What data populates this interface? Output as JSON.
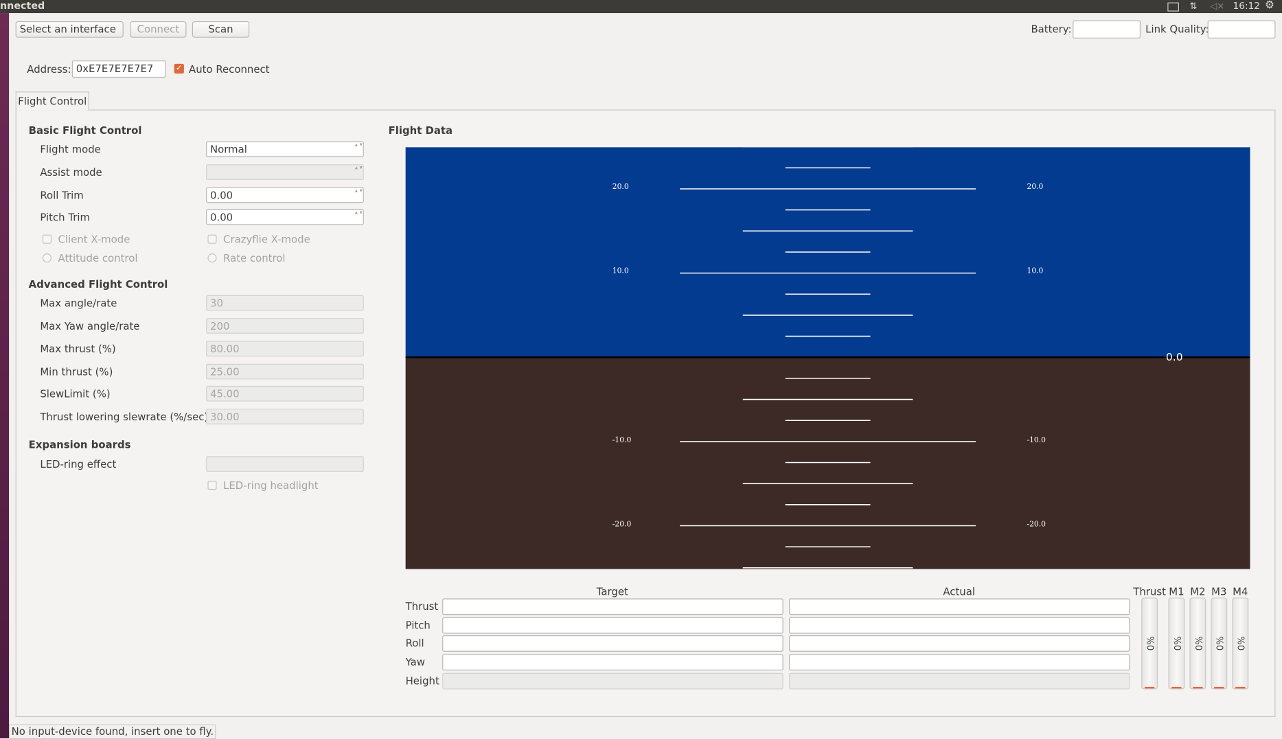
{
  "topbar": {
    "title": "nnected",
    "clock": "16:12"
  },
  "toolbar": {
    "interface": "Select an interface",
    "connect": "Connect",
    "scan": "Scan",
    "battery": "Battery:",
    "link_quality": "Link Quality:"
  },
  "address": {
    "label": "Address:",
    "value": "0xE7E7E7E7E7",
    "auto_reconnect": "Auto Reconnect"
  },
  "tab": "Flight Control",
  "basic": {
    "heading": "Basic Flight Control",
    "rows": [
      {
        "label": "Flight mode",
        "value": "Normal"
      },
      {
        "label": "Assist mode"
      },
      {
        "label": "Roll Trim",
        "value": "0.00"
      },
      {
        "label": "Pitch Trim",
        "value": "0.00"
      }
    ],
    "checks": [
      "Client X-mode",
      "Crazyflie X-mode"
    ],
    "radios": [
      "Attitude control",
      "Rate control"
    ]
  },
  "advanced": {
    "heading": "Advanced Flight Control",
    "rows": [
      {
        "label": "Max angle/rate",
        "value": "30"
      },
      {
        "label": "Max Yaw angle/rate",
        "value": "200"
      },
      {
        "label": "Max thrust (%)",
        "value": "80.00"
      },
      {
        "label": "Min thrust (%)",
        "value": "25.00"
      },
      {
        "label": "SlewLimit (%)",
        "value": "45.00"
      },
      {
        "label": "Thrust lowering slewrate (%/sec)",
        "value": "30.00"
      }
    ]
  },
  "expansion": {
    "heading": "Expansion boards",
    "effect": "LED-ring effect",
    "headlight": "LED-ring headlight"
  },
  "flight_data": {
    "heading": "Flight Data",
    "horizon_labels": [
      "20.0",
      "10.0",
      "-10.0",
      "-20.0"
    ],
    "center_label": "0.0",
    "columns": [
      "Target",
      "Actual"
    ],
    "rows": [
      "Thrust",
      "Pitch",
      "Roll",
      "Yaw",
      "Height"
    ],
    "motors": [
      "Thrust",
      "M1",
      "M2",
      "M3",
      "M4"
    ],
    "motor_value": "%0"
  },
  "status": "No input-device found, insert one to fly."
}
